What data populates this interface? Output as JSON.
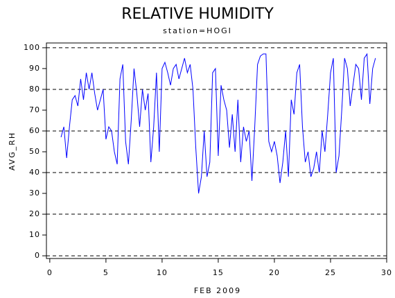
{
  "chart_data": {
    "type": "line",
    "title": "RELATIVE HUMIDITY",
    "subtitle": "station=HOGI",
    "x_label": "FEB 2009",
    "y_label": "AVG_RH",
    "x": [
      1,
      1.25,
      1.5,
      1.75,
      2,
      2.25,
      2.5,
      2.75,
      3,
      3.25,
      3.5,
      3.75,
      4,
      4.25,
      4.5,
      4.75,
      5,
      5.25,
      5.5,
      5.75,
      6,
      6.25,
      6.5,
      6.75,
      7,
      7.25,
      7.5,
      7.75,
      8,
      8.25,
      8.5,
      8.75,
      9,
      9.25,
      9.5,
      9.75,
      10,
      10.25,
      10.5,
      10.75,
      11,
      11.25,
      11.5,
      11.75,
      12,
      12.25,
      12.5,
      12.75,
      13,
      13.25,
      13.5,
      13.75,
      14,
      14.25,
      14.5,
      14.75,
      15,
      15.25,
      15.5,
      15.75,
      16,
      16.25,
      16.5,
      16.75,
      17,
      17.25,
      17.5,
      17.75,
      18,
      18.25,
      18.5,
      18.75,
      19,
      19.25,
      19.5,
      19.75,
      20,
      20.25,
      20.5,
      20.75,
      21,
      21.25,
      21.5,
      21.75,
      22,
      22.25,
      22.5,
      22.75,
      23,
      23.25,
      23.5,
      23.75,
      24,
      24.25,
      24.5,
      24.75,
      25,
      25.25,
      25.5,
      25.75,
      26,
      26.25,
      26.5,
      26.75,
      27,
      27.25,
      27.5,
      27.75,
      28,
      28.25,
      28.5,
      28.75,
      29
    ],
    "series": [
      {
        "name": "AVG_RH",
        "color": "#0000ff",
        "values": [
          57,
          62,
          47,
          62,
          75,
          77,
          72,
          85,
          75,
          88,
          80,
          88,
          78,
          70,
          75,
          80,
          56,
          62,
          60,
          50,
          44,
          85,
          92,
          55,
          44,
          65,
          90,
          78,
          62,
          80,
          70,
          78,
          45,
          62,
          88,
          50,
          90,
          93,
          88,
          82,
          90,
          92,
          85,
          90,
          95,
          88,
          92,
          80,
          52,
          30,
          38,
          60,
          38,
          45,
          88,
          90,
          48,
          82,
          75,
          70,
          52,
          68,
          50,
          75,
          45,
          62,
          55,
          60,
          36,
          62,
          92,
          96,
          97,
          97,
          55,
          50,
          55,
          48,
          35,
          45,
          60,
          38,
          75,
          68,
          88,
          92,
          62,
          45,
          50,
          38,
          42,
          50,
          40,
          60,
          50,
          68,
          88,
          95,
          40,
          48,
          70,
          95,
          90,
          72,
          82,
          92,
          90,
          75,
          95,
          97,
          73,
          90,
          95
        ]
      }
    ],
    "xlim": [
      -0.3,
      30
    ],
    "ylim": [
      -1.3,
      102.3
    ],
    "xticks": [
      0,
      5,
      10,
      15,
      20,
      25,
      30
    ],
    "yticks": [
      0,
      10,
      20,
      30,
      40,
      50,
      60,
      70,
      80,
      90,
      100
    ],
    "reference_lines": [
      0,
      20,
      40,
      60,
      80,
      100
    ]
  }
}
